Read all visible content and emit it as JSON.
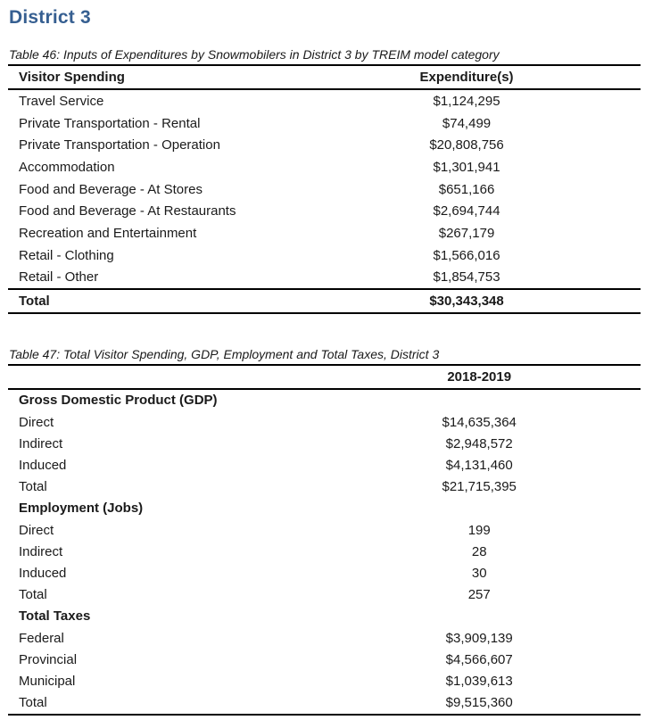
{
  "page": {
    "title": "District 3"
  },
  "colors": {
    "heading": "#365f91",
    "text": "#1a1a1a",
    "border": "#000000"
  },
  "table46": {
    "caption": "Table 46: Inputs of Expenditures by Snowmobilers in District 3 by TREIM model category",
    "col_label": "Visitor Spending",
    "col_value": "Expenditure(s)",
    "rows": [
      {
        "label": "Travel Service",
        "value": "$1,124,295"
      },
      {
        "label": "Private Transportation - Rental",
        "value": "$74,499"
      },
      {
        "label": "Private Transportation - Operation",
        "value": "$20,808,756"
      },
      {
        "label": "Accommodation",
        "value": "$1,301,941"
      },
      {
        "label": "Food and Beverage - At Stores",
        "value": "$651,166"
      },
      {
        "label": "Food and Beverage - At Restaurants",
        "value": "$2,694,744"
      },
      {
        "label": "Recreation and Entertainment",
        "value": "$267,179"
      },
      {
        "label": "Retail - Clothing",
        "value": "$1,566,016"
      },
      {
        "label": "Retail - Other",
        "value": "$1,854,753"
      }
    ],
    "total": {
      "label": "Total",
      "value": "$30,343,348"
    }
  },
  "table47": {
    "caption": "Table 47: Total Visitor Spending, GDP, Employment and Total Taxes, District 3",
    "year_header": "2018-2019",
    "sections": [
      {
        "header": "Gross Domestic Product (GDP)",
        "rows": [
          {
            "label": "Direct",
            "value": "$14,635,364"
          },
          {
            "label": "Indirect",
            "value": "$2,948,572"
          },
          {
            "label": "Induced",
            "value": "$4,131,460"
          },
          {
            "label": "Total",
            "value": "$21,715,395"
          }
        ]
      },
      {
        "header": "Employment (Jobs)",
        "rows": [
          {
            "label": "Direct",
            "value": "199"
          },
          {
            "label": "Indirect",
            "value": "28"
          },
          {
            "label": "Induced",
            "value": "30"
          },
          {
            "label": "Total",
            "value": "257"
          }
        ]
      },
      {
        "header": "Total Taxes",
        "rows": [
          {
            "label": "Federal",
            "value": "$3,909,139"
          },
          {
            "label": "Provincial",
            "value": "$4,566,607"
          },
          {
            "label": "Municipal",
            "value": "$1,039,613"
          },
          {
            "label": "Total",
            "value": "$9,515,360"
          }
        ]
      }
    ]
  }
}
